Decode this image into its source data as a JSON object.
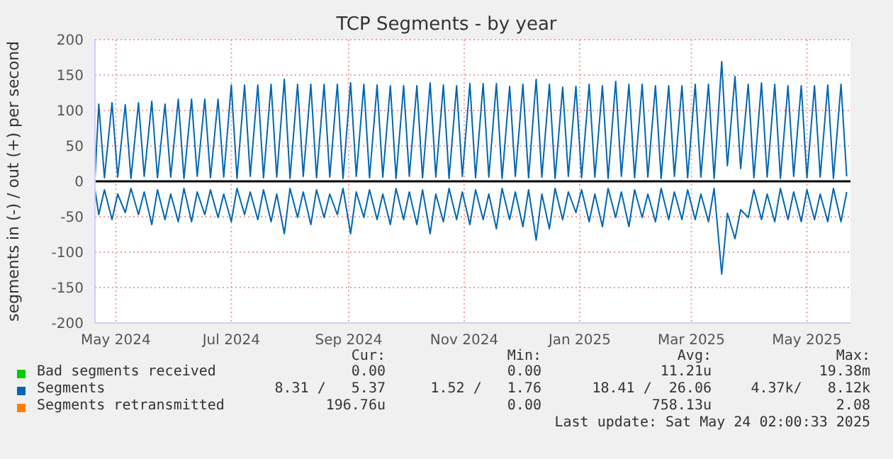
{
  "chart_data": {
    "type": "line",
    "title": "TCP Segments - by year",
    "ylabel": "segments in (-) / out (+) per second",
    "x": [
      "2024-04-20",
      "2024-04-22",
      "2024-04-25",
      "2024-04-29",
      "2024-05-02",
      "2024-05-06",
      "2024-05-09",
      "2024-05-13",
      "2024-05-16",
      "2024-05-20",
      "2024-05-23",
      "2024-05-27",
      "2024-05-30",
      "2024-06-03",
      "2024-06-06",
      "2024-06-10",
      "2024-06-13",
      "2024-06-17",
      "2024-06-20",
      "2024-06-24",
      "2024-06-27",
      "2024-07-01",
      "2024-07-04",
      "2024-07-08",
      "2024-07-11",
      "2024-07-15",
      "2024-07-18",
      "2024-07-22",
      "2024-07-25",
      "2024-07-29",
      "2024-08-01",
      "2024-08-05",
      "2024-08-08",
      "2024-08-12",
      "2024-08-15",
      "2024-08-19",
      "2024-08-22",
      "2024-08-26",
      "2024-08-29",
      "2024-09-02",
      "2024-09-05",
      "2024-09-09",
      "2024-09-12",
      "2024-09-16",
      "2024-09-19",
      "2024-09-23",
      "2024-09-26",
      "2024-09-30",
      "2024-10-03",
      "2024-10-07",
      "2024-10-10",
      "2024-10-14",
      "2024-10-17",
      "2024-10-21",
      "2024-10-24",
      "2024-10-28",
      "2024-10-31",
      "2024-11-04",
      "2024-11-07",
      "2024-11-11",
      "2024-11-14",
      "2024-11-18",
      "2024-11-21",
      "2024-11-25",
      "2024-11-28",
      "2024-12-02",
      "2024-12-05",
      "2024-12-09",
      "2024-12-12",
      "2024-12-16",
      "2024-12-19",
      "2024-12-23",
      "2024-12-26",
      "2024-12-30",
      "2025-01-02",
      "2025-01-06",
      "2025-01-09",
      "2025-01-13",
      "2025-01-16",
      "2025-01-20",
      "2025-01-23",
      "2025-01-27",
      "2025-01-30",
      "2025-02-03",
      "2025-02-06",
      "2025-02-10",
      "2025-02-13",
      "2025-02-17",
      "2025-02-20",
      "2025-02-24",
      "2025-02-27",
      "2025-03-03",
      "2025-03-06",
      "2025-03-10",
      "2025-03-13",
      "2025-03-17",
      "2025-03-20",
      "2025-03-24",
      "2025-03-27",
      "2025-03-31",
      "2025-04-03",
      "2025-04-07",
      "2025-04-10",
      "2025-04-14",
      "2025-04-17",
      "2025-04-21",
      "2025-04-24",
      "2025-04-28",
      "2025-05-01",
      "2025-05-05",
      "2025-05-08",
      "2025-05-12",
      "2025-05-15",
      "2025-05-19",
      "2025-05-22"
    ],
    "series": [
      {
        "name": "Bad segments received",
        "color": "#00cc00",
        "values": [
          null,
          null,
          null,
          null,
          null,
          null,
          null,
          null,
          null,
          null,
          null,
          null,
          null,
          null,
          null,
          null,
          null,
          null,
          null,
          null,
          null,
          null,
          null,
          null,
          null,
          null,
          null,
          null,
          null,
          null,
          null,
          null,
          null,
          null,
          null,
          null,
          null,
          null,
          null,
          null,
          null,
          null,
          null,
          null,
          null,
          null,
          null,
          null,
          null,
          null,
          null,
          null,
          null,
          null,
          null,
          null,
          null,
          null,
          null,
          null,
          null,
          null,
          null,
          null,
          null,
          null,
          null,
          null,
          null,
          null,
          null,
          null,
          null,
          null,
          null,
          null,
          null,
          null,
          null,
          null,
          null,
          null,
          null,
          null,
          null,
          null,
          null,
          null,
          null,
          null,
          null,
          null,
          null,
          null,
          null,
          null,
          null,
          null,
          null,
          null,
          null,
          null,
          null,
          null,
          null,
          null,
          null,
          null,
          null,
          null,
          null,
          null,
          null,
          null,
          null
        ]
      },
      {
        "name": "Segments",
        "color": "#0066b3",
        "values": [
          5,
          109,
          5,
          111,
          6,
          108,
          4,
          111,
          7,
          113,
          5,
          109,
          6,
          116,
          4,
          116,
          7,
          116,
          5,
          116,
          6,
          136,
          4,
          136,
          7,
          136,
          5,
          137,
          6,
          144,
          4,
          137,
          7,
          137,
          5,
          137,
          6,
          137,
          4,
          139,
          7,
          137,
          5,
          136,
          6,
          135,
          4,
          135,
          7,
          135,
          5,
          139,
          6,
          136,
          4,
          135,
          7,
          138,
          5,
          138,
          6,
          138,
          4,
          134,
          7,
          137,
          5,
          144,
          6,
          137,
          4,
          133,
          7,
          134,
          5,
          137,
          6,
          135,
          4,
          141,
          7,
          137,
          5,
          137,
          6,
          135,
          4,
          135,
          7,
          135,
          5,
          137,
          6,
          137,
          4,
          169,
          22,
          148,
          18,
          137,
          5,
          139,
          6,
          137,
          4,
          135,
          7,
          135,
          5,
          135,
          6,
          136,
          4,
          137,
          7
        ]
      },
      {
        "color": "#0066b3",
        "values": [
          -12,
          -47,
          -12,
          -54,
          -18,
          -44,
          -10,
          -47,
          -15,
          -61,
          -12,
          -54,
          -18,
          -57,
          -10,
          -57,
          -15,
          -47,
          -12,
          -51,
          -18,
          -57,
          -10,
          -47,
          -15,
          -54,
          -12,
          -57,
          -18,
          -74,
          -10,
          -51,
          -15,
          -61,
          -12,
          -51,
          -18,
          -47,
          -10,
          -74,
          -15,
          -51,
          -12,
          -54,
          -18,
          -61,
          -10,
          -54,
          -15,
          -61,
          -12,
          -74,
          -18,
          -57,
          -10,
          -54,
          -15,
          -61,
          -12,
          -54,
          -18,
          -67,
          -10,
          -54,
          -15,
          -64,
          -12,
          -83,
          -18,
          -67,
          -10,
          -54,
          -15,
          -44,
          -12,
          -57,
          -18,
          -64,
          -10,
          -51,
          -15,
          -64,
          -12,
          -51,
          -18,
          -57,
          -10,
          -54,
          -15,
          -54,
          -12,
          -54,
          -18,
          -57,
          -10,
          -131,
          -45,
          -81,
          -40,
          -51,
          -12,
          -54,
          -18,
          -57,
          -10,
          -54,
          -15,
          -57,
          -12,
          -54,
          -18,
          -57,
          -10,
          -57,
          -15
        ]
      },
      {
        "name": "Segments retransmitted",
        "color": "#ff8000",
        "values": [
          null,
          null,
          null,
          null,
          null,
          null,
          null,
          null,
          null,
          null,
          null,
          null,
          null,
          null,
          null,
          null,
          null,
          null,
          null,
          null,
          null,
          null,
          null,
          null,
          null,
          null,
          null,
          null,
          null,
          null,
          null,
          null,
          null,
          null,
          null,
          null,
          null,
          null,
          null,
          null,
          null,
          null,
          null,
          null,
          null,
          null,
          null,
          null,
          null,
          null,
          null,
          null,
          null,
          null,
          null,
          null,
          null,
          null,
          null,
          null,
          null,
          null,
          null,
          null,
          null,
          null,
          null,
          null,
          null,
          null,
          null,
          null,
          null,
          null,
          null,
          null,
          null,
          null,
          null,
          null,
          null,
          null,
          null,
          null,
          null,
          null,
          null,
          null,
          null,
          null,
          null,
          null,
          null,
          null,
          null,
          null,
          null,
          null,
          null,
          null,
          null,
          null,
          null,
          null,
          null,
          null,
          null,
          null,
          null,
          null,
          null,
          null,
          null,
          null,
          null
        ]
      }
    ],
    "xlim": [
      "2024-04-20",
      "2025-05-24"
    ],
    "xticks": [
      {
        "value": "2024-05-01",
        "label": "May 2024"
      },
      {
        "value": "2024-07-01",
        "label": "Jul 2024"
      },
      {
        "value": "2024-09-01",
        "label": "Sep 2024"
      },
      {
        "value": "2024-11-01",
        "label": "Nov 2024"
      },
      {
        "value": "2025-01-01",
        "label": "Jan 2025"
      },
      {
        "value": "2025-03-01",
        "label": "Mar 2025"
      },
      {
        "value": "2025-05-01",
        "label": "May 2025"
      }
    ],
    "ylim": [
      -200,
      200
    ],
    "yticks": [
      -200,
      -150,
      -100,
      -50,
      0,
      50,
      100,
      150,
      200
    ],
    "grid": true,
    "legend": "bottom",
    "ref_lines": [
      {
        "axis": "y",
        "value": 0,
        "color": "#000000"
      }
    ],
    "annotations": [
      "Cur:",
      "Min:",
      "Avg:",
      "Max:",
      "0.00",
      "0.00",
      "11.21u",
      "19.38m",
      "8.31 /   5.37",
      "1.52 /   1.76",
      "18.41 /  26.06",
      "4.37k/   8.12k",
      "196.76u",
      "0.00",
      "758.13u",
      "2.08",
      "Last update: Sat May 24 02:00:33 2025"
    ]
  }
}
